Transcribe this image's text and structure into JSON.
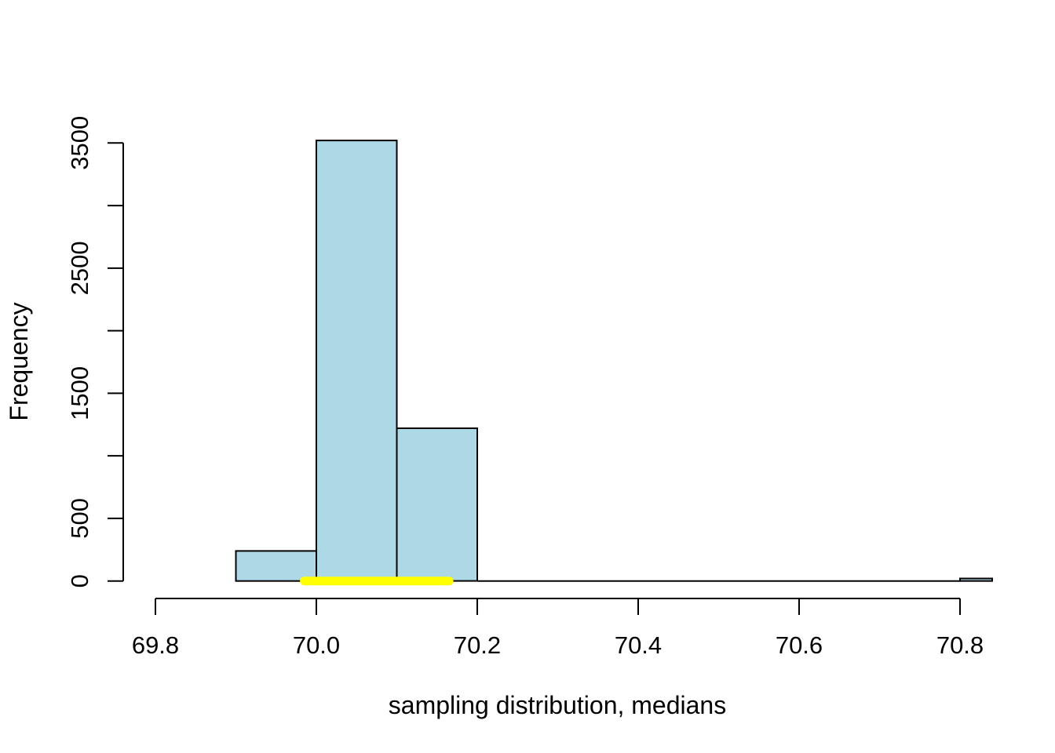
{
  "figure": {
    "background": "#FFFFFF"
  },
  "chart_data": {
    "type": "bar",
    "subtype": "histogram",
    "title": "",
    "xlabel": "sampling distribution, medians",
    "ylabel": "Frequency",
    "bin_edges": [
      69.9,
      70.0,
      70.1,
      70.2,
      70.3,
      70.4,
      70.5,
      70.6,
      70.7,
      70.8,
      70.9
    ],
    "counts": [
      240,
      3520,
      1220,
      0,
      0,
      0,
      0,
      0,
      0,
      20
    ],
    "x_tick_values": [
      69.8,
      70.0,
      70.2,
      70.4,
      70.6,
      70.8
    ],
    "x_tick_labels": [
      "69.8",
      "70.0",
      "70.2",
      "70.4",
      "70.6",
      "70.8"
    ],
    "y_tick_values": [
      0,
      500,
      1000,
      1500,
      2000,
      2500,
      3000,
      3500
    ],
    "y_tick_labels": [
      "0",
      "500",
      "",
      "1500",
      "",
      "2500",
      "",
      "3500"
    ],
    "x_axis_range": [
      69.8,
      70.8
    ],
    "y_axis_range": [
      0,
      3500
    ],
    "xlim": [
      69.76,
      70.84
    ],
    "ylim": [
      -140,
      3640
    ],
    "grid": false,
    "legend": null,
    "bar_fill_color": "#ADD8E6",
    "bar_stroke_color": "#000000",
    "axis_color": "#000000",
    "highlight_segment": {
      "x_start": 69.985,
      "x_end": 70.165,
      "y": 0,
      "color": "#FFFF00"
    }
  }
}
